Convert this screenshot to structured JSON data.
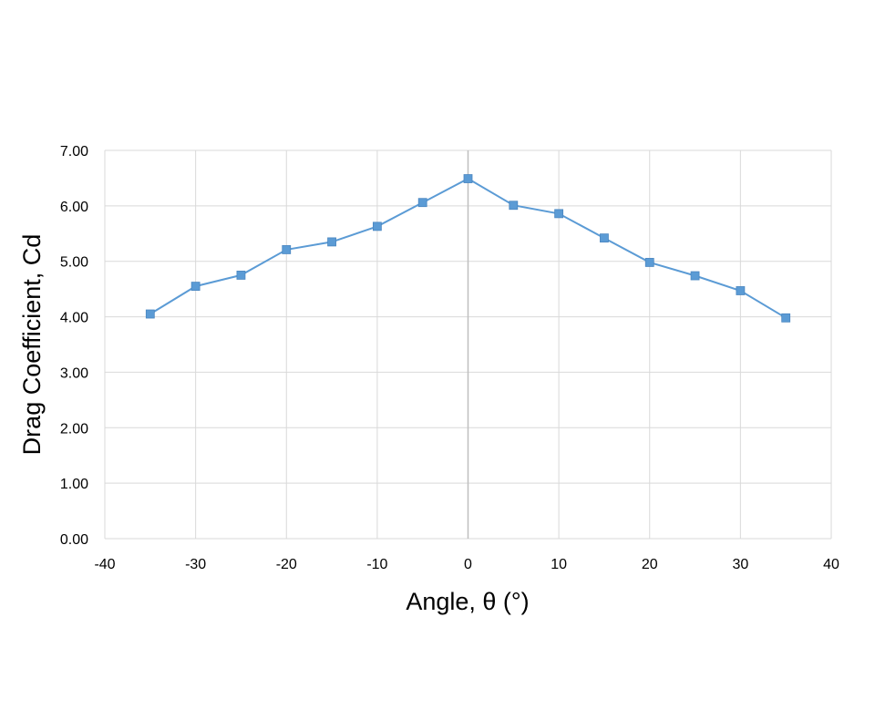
{
  "chart_data": {
    "type": "scatter",
    "title": "",
    "xlabel": "Angle, θ (°)",
    "ylabel": "Drag Coefficient, Cd",
    "xlim": [
      -40,
      40
    ],
    "ylim": [
      0,
      7
    ],
    "x_ticks": [
      -40,
      -30,
      -20,
      -10,
      0,
      10,
      20,
      30,
      40
    ],
    "x_tick_labels": [
      "-40",
      "-30",
      "-20",
      "-10",
      "0",
      "10",
      "20",
      "30",
      "40"
    ],
    "y_ticks": [
      0,
      1,
      2,
      3,
      4,
      5,
      6,
      7
    ],
    "y_tick_labels": [
      "0.00",
      "1.00",
      "2.00",
      "3.00",
      "4.00",
      "5.00",
      "6.00",
      "7.00"
    ],
    "grid": true,
    "legend": "none",
    "series": [
      {
        "x": [
          -35,
          -30,
          -25,
          -20,
          -15,
          -10,
          -5,
          0,
          5,
          10,
          15,
          20,
          25,
          30,
          35
        ],
        "y": [
          4.05,
          4.55,
          4.75,
          5.21,
          5.35,
          5.63,
          6.06,
          6.49,
          6.01,
          5.86,
          5.42,
          4.98,
          4.74,
          4.47,
          3.98
        ],
        "color": "#5B9BD5",
        "line_color": "#5B9BD5",
        "marker": "square"
      }
    ],
    "colors": {
      "grid": "#d9d9d9",
      "zero_line": "#bfbfbf"
    }
  }
}
